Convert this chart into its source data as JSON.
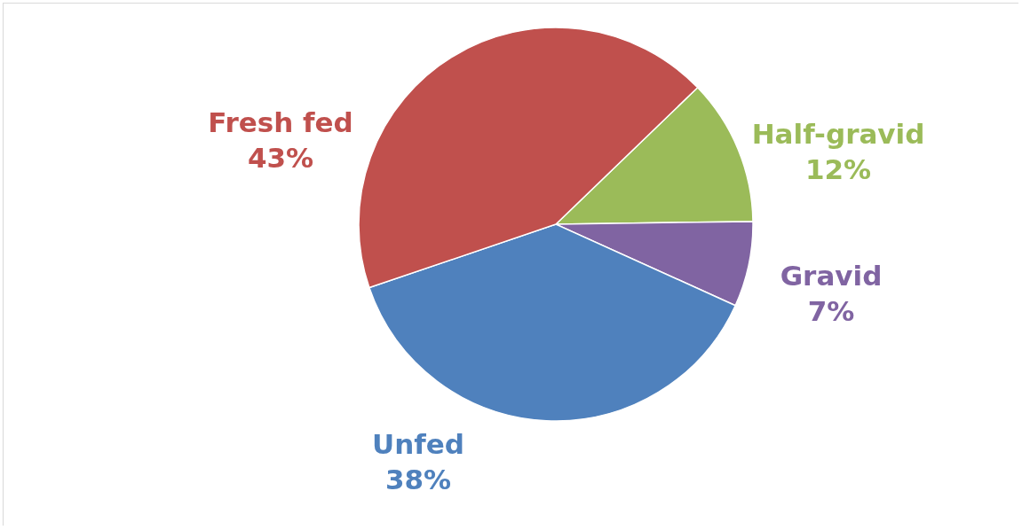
{
  "chart_data": {
    "type": "pie",
    "categories": [
      "Half-gravid",
      "Gravid",
      "Unfed",
      "Fresh fed"
    ],
    "values": [
      12,
      7,
      38,
      43
    ],
    "colors": [
      "#9bbb59",
      "#8064a2",
      "#4f81bd",
      "#c0504d"
    ],
    "value_labels": [
      "12%",
      "7%",
      "38%",
      "43%"
    ]
  }
}
